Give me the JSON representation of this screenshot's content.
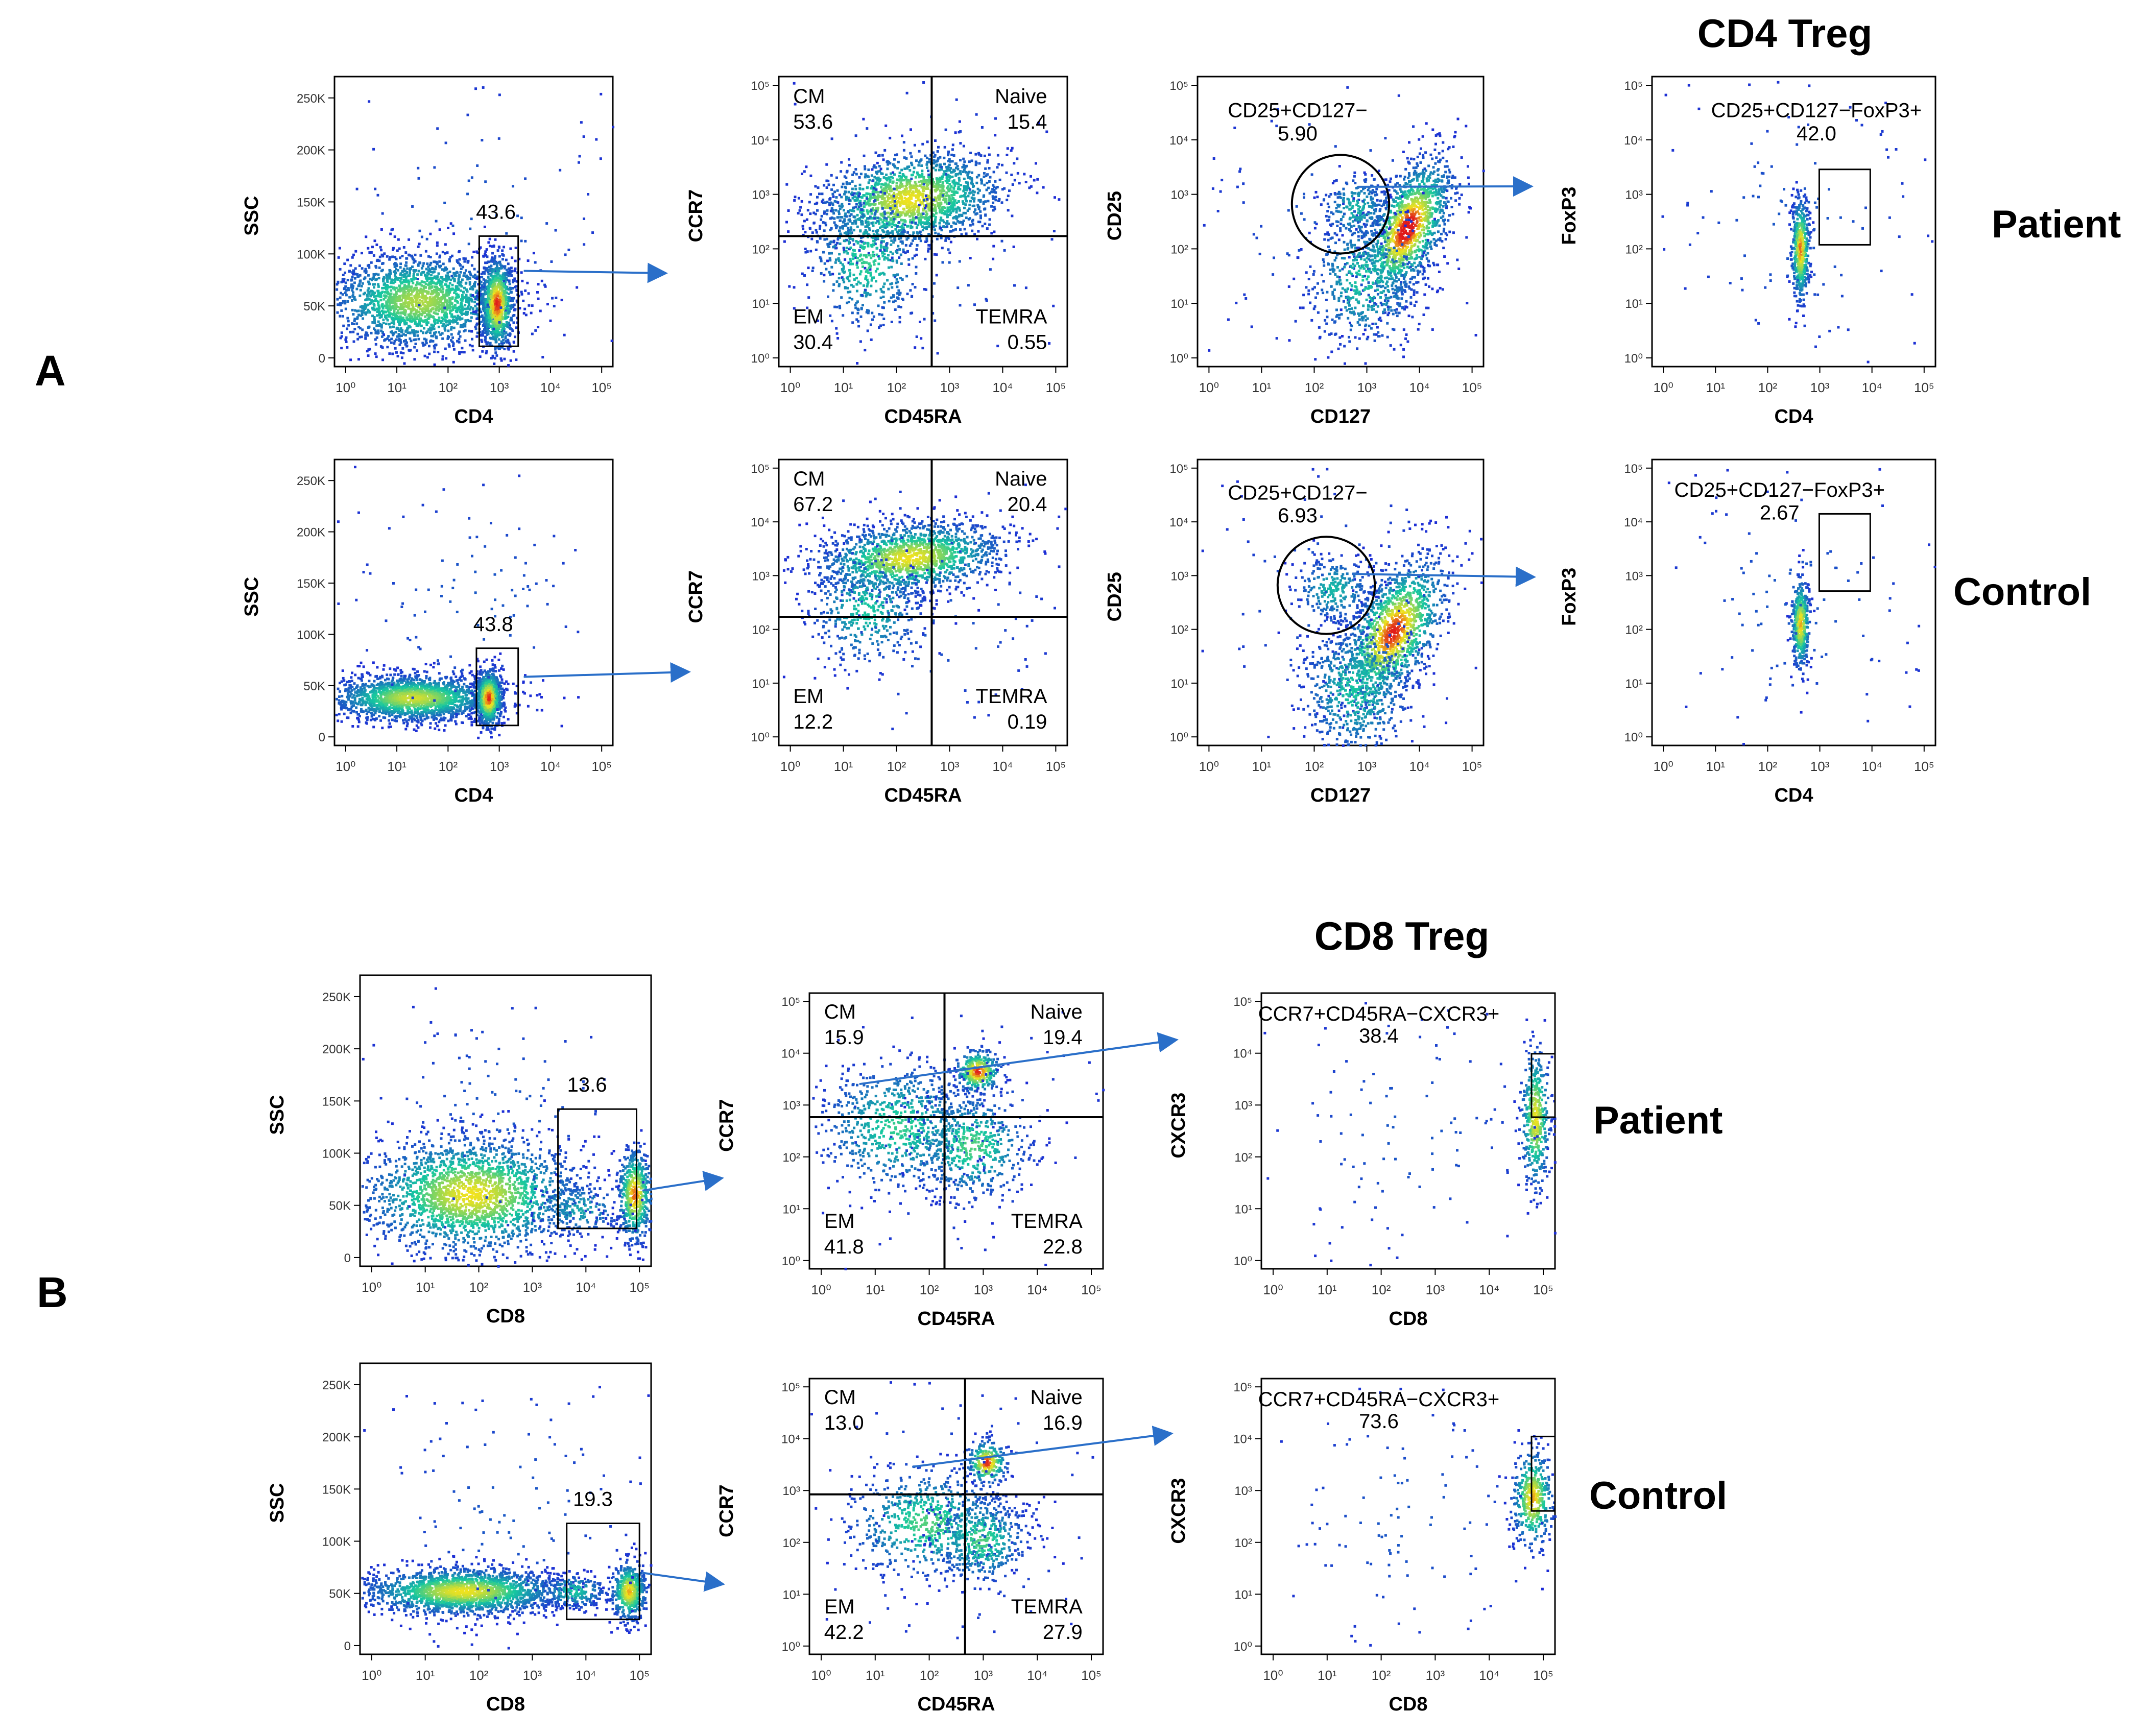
{
  "figure": {
    "panel_letters": [
      "A",
      "B"
    ],
    "titles": [
      "CD4 Treg",
      "CD8 Treg"
    ],
    "row_labels": [
      "Patient",
      "Control",
      "Patient",
      "Control"
    ]
  },
  "axis_ticks": {
    "log": [
      "10^0",
      "10^1",
      "10^2",
      "10^3",
      "10^4",
      "10^5"
    ],
    "ssc": [
      "0",
      "50K",
      "100K",
      "150K",
      "200K",
      "250K"
    ]
  },
  "colors": {
    "axis": "#000000",
    "gate": "#000000",
    "arrow": "#2a6fc9",
    "density_low": "#1d2bd6",
    "density_mid": "#16c8a0",
    "density_high": "#f0e21e",
    "density_max": "#e01a1a"
  },
  "chart_data": [
    {
      "id": "A1",
      "type": "scatter",
      "plot": "flow-cytometry-density",
      "xlabel": "CD4",
      "ylabel": "SSC",
      "xscale": "log",
      "xlim": [
        1,
        100000
      ],
      "ylim": [
        0,
        262144
      ],
      "gate": {
        "shape": "rectangle",
        "value": "43.6"
      },
      "row": "Patient"
    },
    {
      "id": "A2",
      "type": "scatter",
      "plot": "flow-cytometry-quadrant",
      "xlabel": "CD45RA",
      "ylabel": "CCR7",
      "xscale": "log",
      "yscale": "log",
      "xlim": [
        1,
        100000
      ],
      "ylim": [
        1,
        100000
      ],
      "quadrants": [
        {
          "name": "CM",
          "value": "53.6"
        },
        {
          "name": "Naive",
          "value": "15.4"
        },
        {
          "name": "EM",
          "value": "30.4"
        },
        {
          "name": "TEMRA",
          "value": "0.55"
        }
      ],
      "row": "Patient"
    },
    {
      "id": "A3",
      "type": "scatter",
      "plot": "flow-cytometry-density",
      "xlabel": "CD127",
      "ylabel": "CD25",
      "xscale": "log",
      "yscale": "log",
      "xlim": [
        1,
        100000
      ],
      "ylim": [
        1,
        100000
      ],
      "gate": {
        "shape": "ellipse",
        "name": "CD25+CD127−",
        "value": "5.90"
      },
      "row": "Patient"
    },
    {
      "id": "A4",
      "type": "scatter",
      "plot": "flow-cytometry-density",
      "xlabel": "CD4",
      "ylabel": "FoxP3",
      "xscale": "log",
      "yscale": "log",
      "xlim": [
        1,
        100000
      ],
      "ylim": [
        1,
        100000
      ],
      "gate": {
        "shape": "rectangle",
        "name": "CD25+CD127−FoxP3+",
        "value": "42.0"
      },
      "row": "Patient"
    },
    {
      "id": "A5",
      "type": "scatter",
      "plot": "flow-cytometry-density",
      "xlabel": "CD4",
      "ylabel": "SSC",
      "xscale": "log",
      "xlim": [
        1,
        100000
      ],
      "ylim": [
        0,
        262144
      ],
      "gate": {
        "shape": "rectangle",
        "value": "43.8"
      },
      "row": "Control"
    },
    {
      "id": "A6",
      "type": "scatter",
      "plot": "flow-cytometry-quadrant",
      "xlabel": "CD45RA",
      "ylabel": "CCR7",
      "xscale": "log",
      "yscale": "log",
      "xlim": [
        1,
        100000
      ],
      "ylim": [
        1,
        100000
      ],
      "quadrants": [
        {
          "name": "CM",
          "value": "67.2"
        },
        {
          "name": "Naive",
          "value": "20.4"
        },
        {
          "name": "EM",
          "value": "12.2"
        },
        {
          "name": "TEMRA",
          "value": "0.19"
        }
      ],
      "row": "Control"
    },
    {
      "id": "A7",
      "type": "scatter",
      "plot": "flow-cytometry-density",
      "xlabel": "CD127",
      "ylabel": "CD25",
      "xscale": "log",
      "yscale": "log",
      "xlim": [
        1,
        100000
      ],
      "ylim": [
        1,
        100000
      ],
      "gate": {
        "shape": "ellipse",
        "name": "CD25+CD127−",
        "value": "6.93"
      },
      "row": "Control"
    },
    {
      "id": "A8",
      "type": "scatter",
      "plot": "flow-cytometry-density",
      "xlabel": "CD4",
      "ylabel": "FoxP3",
      "xscale": "log",
      "yscale": "log",
      "xlim": [
        1,
        100000
      ],
      "ylim": [
        1,
        100000
      ],
      "gate": {
        "shape": "rectangle",
        "name": "CD25+CD127−FoxP3+",
        "value": "2.67"
      },
      "row": "Control"
    },
    {
      "id": "B1",
      "type": "scatter",
      "plot": "flow-cytometry-density",
      "xlabel": "CD8",
      "ylabel": "SSC",
      "xscale": "log",
      "xlim": [
        1,
        100000
      ],
      "ylim": [
        0,
        262144
      ],
      "gate": {
        "shape": "rectangle",
        "value": "13.6"
      },
      "row": "Patient"
    },
    {
      "id": "B2",
      "type": "scatter",
      "plot": "flow-cytometry-quadrant",
      "xlabel": "CD45RA",
      "ylabel": "CCR7",
      "xscale": "log",
      "yscale": "log",
      "xlim": [
        1,
        100000
      ],
      "ylim": [
        1,
        100000
      ],
      "quadrants": [
        {
          "name": "CM",
          "value": "15.9"
        },
        {
          "name": "Naive",
          "value": "19.4"
        },
        {
          "name": "EM",
          "value": "41.8"
        },
        {
          "name": "TEMRA",
          "value": "22.8"
        }
      ],
      "row": "Patient"
    },
    {
      "id": "B3",
      "type": "scatter",
      "plot": "flow-cytometry-density",
      "xlabel": "CD8",
      "ylabel": "CXCR3",
      "xscale": "log",
      "yscale": "log",
      "xlim": [
        1,
        100000
      ],
      "ylim": [
        1,
        100000
      ],
      "gate": {
        "shape": "rectangle",
        "name": "CCR7+CD45RA−CXCR3+",
        "value": "38.4"
      },
      "row": "Patient"
    },
    {
      "id": "B4",
      "type": "scatter",
      "plot": "flow-cytometry-density",
      "xlabel": "CD8",
      "ylabel": "SSC",
      "xscale": "log",
      "xlim": [
        1,
        100000
      ],
      "ylim": [
        0,
        262144
      ],
      "gate": {
        "shape": "rectangle",
        "value": "19.3"
      },
      "row": "Control"
    },
    {
      "id": "B5",
      "type": "scatter",
      "plot": "flow-cytometry-quadrant",
      "xlabel": "CD45RA",
      "ylabel": "CCR7",
      "xscale": "log",
      "yscale": "log",
      "xlim": [
        1,
        100000
      ],
      "ylim": [
        1,
        100000
      ],
      "quadrants": [
        {
          "name": "CM",
          "value": "13.0"
        },
        {
          "name": "Naive",
          "value": "16.9"
        },
        {
          "name": "EM",
          "value": "42.2"
        },
        {
          "name": "TEMRA",
          "value": "27.9"
        }
      ],
      "row": "Control"
    },
    {
      "id": "B6",
      "type": "scatter",
      "plot": "flow-cytometry-density",
      "xlabel": "CD8",
      "ylabel": "CXCR3",
      "xscale": "log",
      "yscale": "log",
      "xlim": [
        1,
        100000
      ],
      "ylim": [
        1,
        100000
      ],
      "gate": {
        "shape": "rectangle",
        "name": "CCR7+CD45RA−CXCR3+",
        "value": "73.6"
      },
      "row": "Control"
    }
  ]
}
